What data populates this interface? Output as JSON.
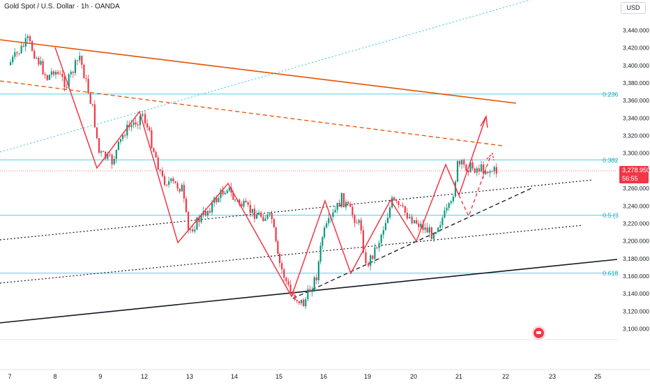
{
  "header": {
    "symbol_title": "Gold Spot / U.S. Dollar · 1h · OANDA",
    "currency_button": "USD"
  },
  "last_price": {
    "value": "3,278.950",
    "countdown": "56:55"
  },
  "colors": {
    "up": "#089981",
    "down": "#f23645",
    "fib": "#4dd0e1",
    "resistance": "#e65100",
    "zigzag": "#f23645"
  },
  "chart_data": {
    "type": "candlestick",
    "title": "Gold Spot / U.S. Dollar · 1h · OANDA",
    "ylim": [
      3080,
      3460
    ],
    "y_ticks": [
      "3,100.000",
      "3,120.000",
      "3,140.000",
      "3,160.000",
      "3,180.000",
      "3,200.000",
      "3,220.000",
      "3,240.000",
      "3,260.000",
      "3,280.000",
      "3,300.000",
      "3,320.000",
      "3,340.000",
      "3,360.000",
      "3,380.000",
      "3,400.000",
      "3,420.000",
      "3,440.000"
    ],
    "x_ticks": [
      "7",
      "8",
      "9",
      "12",
      "13",
      "14",
      "15",
      "16",
      "19",
      "20",
      "21",
      "22",
      "23",
      "25"
    ],
    "fib_levels": [
      {
        "label": "0.236",
        "price": 3367
      },
      {
        "label": "0.382",
        "price": 3292
      },
      {
        "label": "0.5 (3",
        "price": 3229
      },
      {
        "label": "0.618",
        "price": 3163
      }
    ],
    "price_path": [
      {
        "d": "7",
        "p": 3400
      },
      {
        "d": "7",
        "p": 3428
      },
      {
        "d": "7",
        "p": 3385
      },
      {
        "d": "8",
        "p": 3395
      },
      {
        "d": "8",
        "p": 3378
      },
      {
        "d": "8",
        "p": 3410
      },
      {
        "d": "8",
        "p": 3350
      },
      {
        "d": "9",
        "p": 3300
      },
      {
        "d": "9",
        "p": 3290
      },
      {
        "d": "9",
        "p": 3325
      },
      {
        "d": "9",
        "p": 3338
      },
      {
        "d": "12",
        "p": 3345
      },
      {
        "d": "12",
        "p": 3270
      },
      {
        "d": "12",
        "p": 3260
      },
      {
        "d": "13",
        "p": 3210
      },
      {
        "d": "13",
        "p": 3235
      },
      {
        "d": "13",
        "p": 3262
      },
      {
        "d": "14",
        "p": 3248
      },
      {
        "d": "14",
        "p": 3232
      },
      {
        "d": "14",
        "p": 3225
      },
      {
        "d": "15",
        "p": 3180
      },
      {
        "d": "15",
        "p": 3140
      },
      {
        "d": "15",
        "p": 3128
      },
      {
        "d": "15",
        "p": 3160
      },
      {
        "d": "16",
        "p": 3205
      },
      {
        "d": "16",
        "p": 3248
      },
      {
        "d": "16",
        "p": 3215
      },
      {
        "d": "19",
        "p": 3170
      },
      {
        "d": "19",
        "p": 3200
      },
      {
        "d": "19",
        "p": 3245
      },
      {
        "d": "19",
        "p": 3232
      },
      {
        "d": "20",
        "p": 3225
      },
      {
        "d": "20",
        "p": 3208
      },
      {
        "d": "20",
        "p": 3240
      },
      {
        "d": "21",
        "p": 3286
      },
      {
        "d": "21",
        "p": 3278.95
      }
    ],
    "zigzag": [
      {
        "d": "8",
        "p": 3418
      },
      {
        "d": "9",
        "p": 3290
      },
      {
        "d": "12",
        "p": 3346
      },
      {
        "d": "13",
        "p": 3198
      },
      {
        "d": "14",
        "p": 3265
      },
      {
        "d": "15",
        "p": 3137
      },
      {
        "d": "16",
        "p": 3255
      },
      {
        "d": "19",
        "p": 3175
      },
      {
        "d": "19",
        "p": 3246
      },
      {
        "d": "20",
        "p": 3200
      },
      {
        "d": "21",
        "p": 3288
      },
      {
        "d": "21",
        "p": 3255
      },
      {
        "d": "22",
        "p": 3340
      }
    ],
    "forecast_dashed": [
      {
        "d": "21",
        "p": 3255
      },
      {
        "d": "21",
        "p": 3230
      },
      {
        "d": "22",
        "p": 3296
      }
    ]
  }
}
